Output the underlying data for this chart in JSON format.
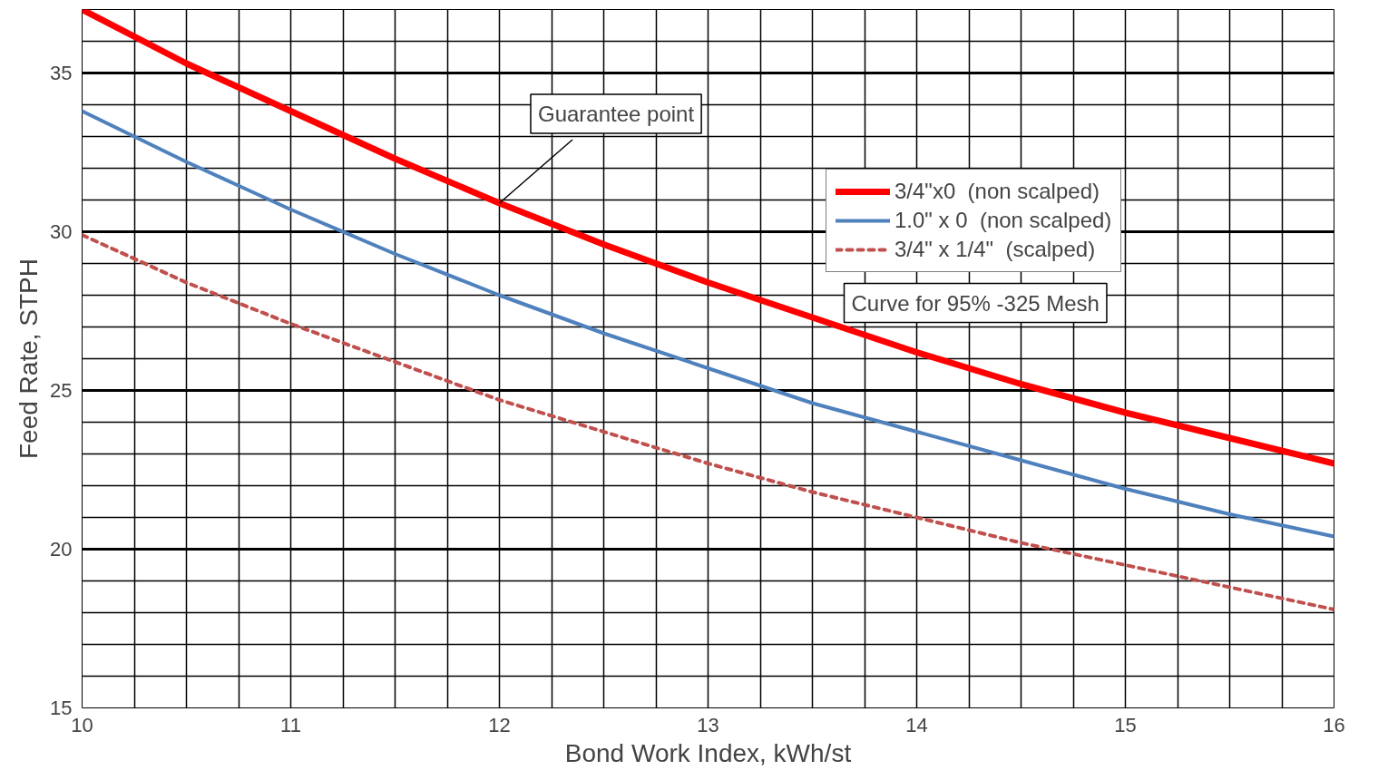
{
  "chart_data": {
    "type": "line",
    "xlabel": "Bond Work Index, kWh/st",
    "ylabel": "Feed Rate, STPH",
    "x": [
      10,
      10.5,
      11,
      11.5,
      12,
      12.5,
      13,
      13.5,
      14,
      14.5,
      15,
      15.5,
      16
    ],
    "series": [
      {
        "name": "3/4\"x0  (non scalped)",
        "color": "#ff0000",
        "values": [
          37.0,
          35.3,
          33.8,
          32.3,
          30.9,
          29.6,
          28.4,
          27.3,
          26.2,
          25.2,
          24.3,
          23.5,
          22.7
        ]
      },
      {
        "name": "1.0\" x 0  (non scalped)",
        "color": "#4f81bd",
        "values": [
          33.8,
          32.2,
          30.7,
          29.3,
          28.0,
          26.8,
          25.7,
          24.6,
          23.7,
          22.8,
          21.9,
          21.1,
          20.4
        ]
      },
      {
        "name": "3/4\" x 1/4\"  (scalped)",
        "color": "#c0504d",
        "line_style": "dashed",
        "values": [
          29.9,
          28.4,
          27.1,
          25.9,
          24.7,
          23.7,
          22.7,
          21.8,
          21.0,
          20.2,
          19.5,
          18.8,
          18.1
        ]
      }
    ],
    "xlim": [
      10,
      16
    ],
    "ylim": [
      15,
      37
    ],
    "xticks": [
      10,
      {
        "value": 10.25,
        "label": null
      },
      {
        "value": 10.5,
        "label": null
      },
      {
        "value": 10.75,
        "label": null
      },
      11,
      {
        "value": 11.25,
        "label": null
      },
      {
        "value": 11.5,
        "label": null
      },
      {
        "value": 11.75,
        "label": null
      },
      12,
      {
        "value": 12.25,
        "label": null
      },
      {
        "value": 12.5,
        "label": null
      },
      {
        "value": 12.75,
        "label": null
      },
      13,
      {
        "value": 13.25,
        "label": null
      },
      {
        "value": 13.5,
        "label": null
      },
      {
        "value": 13.75,
        "label": null
      },
      14,
      {
        "value": 14.25,
        "label": null
      },
      {
        "value": 14.5,
        "label": null
      },
      {
        "value": 14.75,
        "label": null
      },
      15,
      {
        "value": 15.25,
        "label": null
      },
      {
        "value": 15.5,
        "label": null
      },
      {
        "value": 15.75,
        "label": null
      },
      16
    ],
    "yticks": [
      15,
      {
        "value": 16,
        "label": null
      },
      {
        "value": 17,
        "label": null
      },
      {
        "value": 18,
        "label": null
      },
      {
        "value": 19,
        "label": null
      },
      20,
      {
        "value": 21,
        "label": null
      },
      {
        "value": 22,
        "label": null
      },
      {
        "value": 23,
        "label": null
      },
      {
        "value": 24,
        "label": null
      },
      25,
      {
        "value": 26,
        "label": null
      },
      {
        "value": 27,
        "label": null
      },
      {
        "value": 28,
        "label": null
      },
      {
        "value": 29,
        "label": null
      },
      30,
      {
        "value": 31,
        "label": null
      },
      {
        "value": 32,
        "label": null
      },
      {
        "value": 33,
        "label": null
      },
      {
        "value": 34,
        "label": null
      },
      35,
      {
        "value": 36,
        "label": null
      }
    ],
    "grid": true,
    "legend": "top right",
    "line_style": "solid",
    "marker": "none",
    "annotations": [
      {
        "text": "Guarantee point",
        "x": 12,
        "y": 30.9
      },
      "Curve for 95% -325 Mesh"
    ]
  }
}
